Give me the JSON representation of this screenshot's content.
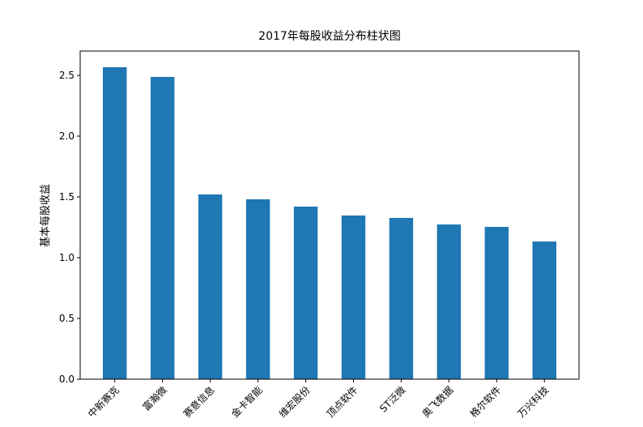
{
  "chart_data": {
    "type": "bar",
    "title": "2017年每股收益分布柱状图",
    "y_label": "基本每股收益",
    "categories": [
      "中新赛克",
      "富瀚微",
      "赛意信息",
      "金卡智能",
      "维宏股份",
      "顶点软件",
      "ST泛微",
      "奥飞数据",
      "格尔软件",
      "万兴科技"
    ],
    "values": [
      2.567,
      2.487,
      1.52,
      1.48,
      1.42,
      1.347,
      1.327,
      1.273,
      1.253,
      1.133
    ],
    "color": "#1f77b4",
    "ylim": [
      0,
      2.7
    ],
    "yticks": [
      {
        "value": 0,
        "label": "0.0"
      },
      0.5,
      {
        "value": 1,
        "label": "1.0"
      },
      1.5,
      {
        "value": 2,
        "label": "2.0"
      },
      2.5
    ]
  }
}
